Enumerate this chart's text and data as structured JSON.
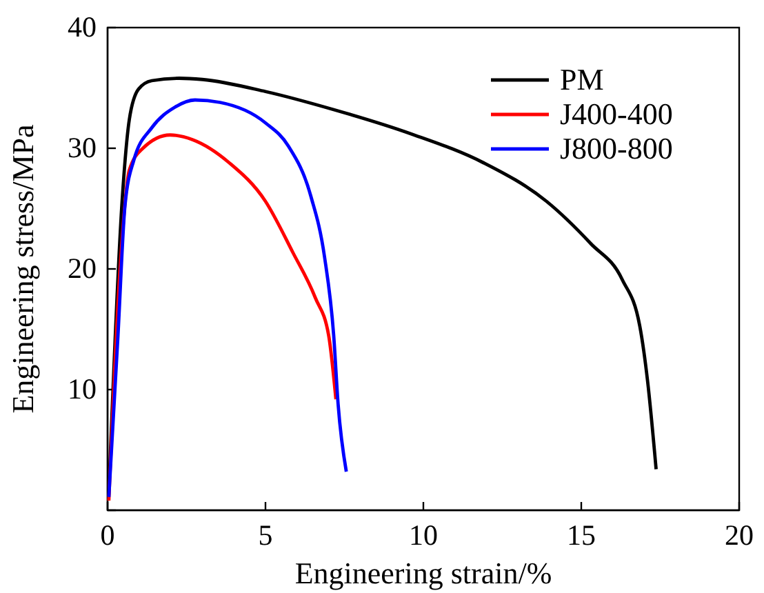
{
  "chart_data": {
    "type": "line",
    "xlabel": "Engineering strain/%",
    "ylabel": "Engineering stress/MPa",
    "xlim": [
      0,
      20
    ],
    "ylim": [
      0,
      40
    ],
    "xticks": [
      0,
      5,
      10,
      15,
      20
    ],
    "yticks": [
      {
        "value": 0,
        "label": null
      },
      10,
      20,
      30,
      40
    ],
    "legend": "top right",
    "grid": false,
    "marker": "none",
    "line_style": "solid",
    "series": [
      {
        "name": "PM",
        "color": "#000000",
        "x": [
          0.03,
          0.47,
          0.69,
          0.98,
          1.4,
          2.27,
          3.0,
          5.0,
          7.16,
          9.6,
          11.9,
          13.9,
          15.3,
          16.3,
          16.85,
          17.1,
          17.37
        ],
        "values": [
          0.8,
          26,
          32.4,
          34.9,
          35.6,
          35.8,
          35.7,
          34.7,
          33.2,
          31.2,
          28.8,
          25.6,
          22.1,
          19.1,
          15.3,
          10.7,
          3.4
        ]
      },
      {
        "name": "J400-400",
        "color": "#ff0000",
        "x": [
          0.04,
          0.4,
          0.69,
          1.12,
          1.98,
          2.7,
          3.85,
          5.0,
          5.86,
          6.58,
          7.0,
          7.23
        ],
        "values": [
          0.8,
          20.2,
          28.2,
          30,
          31.1,
          30.7,
          28.8,
          25.6,
          21.4,
          17.6,
          14.5,
          9.2
        ]
      },
      {
        "name": "J800-800",
        "color": "#0000ff",
        "x": [
          0.04,
          0.33,
          0.55,
          0.83,
          1.4,
          2.13,
          2.77,
          3.56,
          5.0,
          5.72,
          6.44,
          6.87,
          7.16,
          7.3,
          7.56
        ],
        "values": [
          1.1,
          14.5,
          25.2,
          29,
          31.7,
          33.4,
          34,
          33.8,
          32.1,
          30.2,
          26,
          21,
          14.5,
          8.8,
          3.2
        ]
      }
    ]
  }
}
